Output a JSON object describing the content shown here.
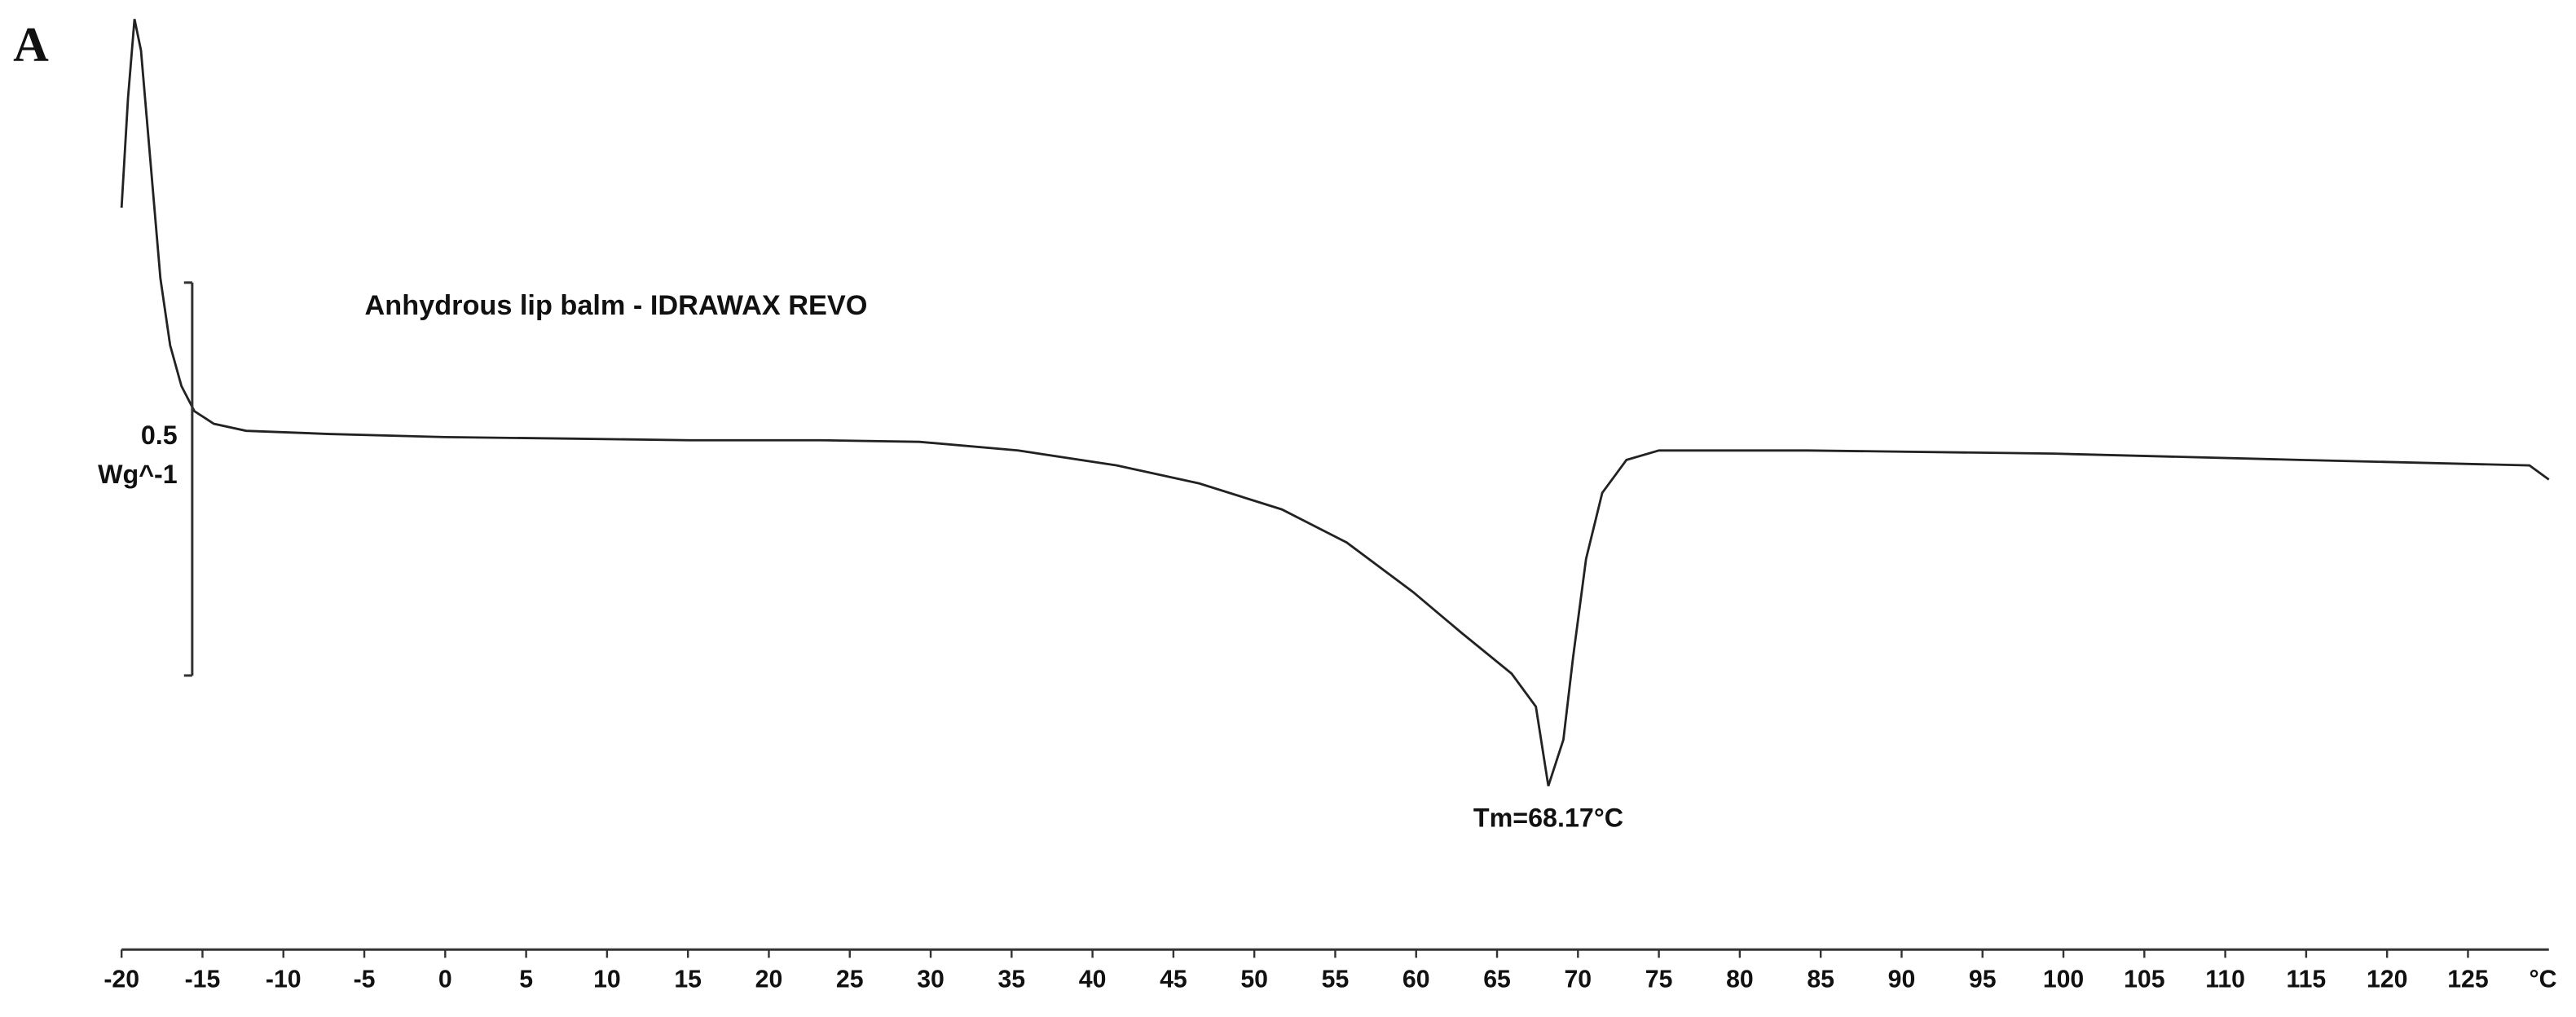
{
  "chart_data": {
    "type": "line",
    "panel_label": "A",
    "title": "Anhydrous lip balm - IDRAWAX REVO",
    "x_label": "°C",
    "color": "#222222",
    "x": [
      -20,
      -19.6,
      -19.2,
      -18.8,
      -18.2,
      -17.6,
      -17.0,
      -16.3,
      -15.5,
      -14.3,
      -12.3,
      -7.2,
      0,
      8,
      15.1,
      23.2,
      29.3,
      35.4,
      41.5,
      46.6,
      51.7,
      55.7,
      59.8,
      62.8,
      65.9,
      67.4,
      68.17,
      69.1,
      69.7,
      70.5,
      71.5,
      73,
      75,
      84.2,
      99.4,
      114.6,
      128.8,
      130
    ],
    "values": [
      0.29,
      0.43,
      0.53,
      0.49,
      0.345,
      0.2,
      0.115,
      0.063,
      0.031,
      0.015,
      0.006,
      0.002,
      -0.002,
      -0.004,
      -0.006,
      -0.006,
      -0.008,
      -0.019,
      -0.038,
      -0.061,
      -0.094,
      -0.136,
      -0.199,
      -0.251,
      -0.303,
      -0.345,
      -0.446,
      -0.387,
      -0.282,
      -0.157,
      -0.073,
      -0.031,
      -0.019,
      -0.019,
      -0.023,
      -0.031,
      -0.038,
      -0.056
    ],
    "xlim": [
      -20,
      130
    ],
    "xticks": [
      -20,
      -15,
      -10,
      -5,
      0,
      5,
      10,
      15,
      20,
      25,
      30,
      35,
      40,
      45,
      50,
      55,
      60,
      65,
      70,
      75,
      80,
      85,
      90,
      95,
      100,
      105,
      110,
      115,
      120,
      125
    ],
    "ylim": [
      -0.65,
      0.55
    ],
    "scale_bar": {
      "value": 0.5,
      "unit": "Wg^-1"
    },
    "annotation": {
      "text": "Tm=68.17°C",
      "x": 68.17
    }
  }
}
